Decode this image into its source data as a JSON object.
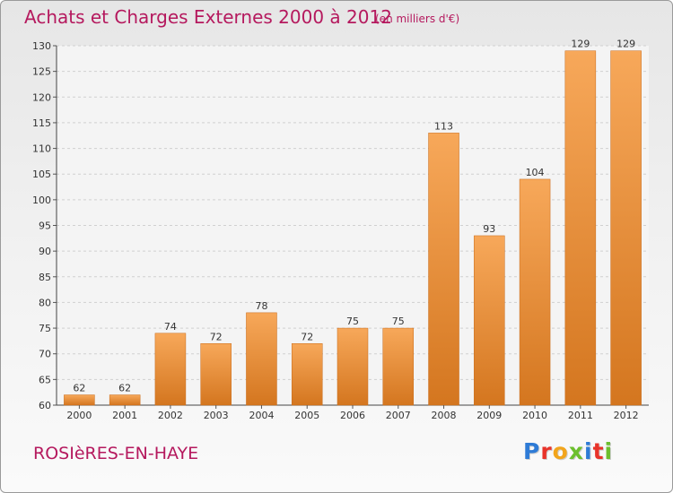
{
  "header": {
    "title": "Achats et Charges Externes 2000 à 2012",
    "subtitle": "(en milliers d'€)"
  },
  "footer": {
    "town": "ROSIèRES-EN-HAYE",
    "logo_letters": [
      "P",
      "r",
      "o",
      "x",
      "i",
      "t",
      "i"
    ]
  },
  "colors": {
    "title": "#b5195e",
    "bar_light": "#f7a85a",
    "bar_dark": "#d4761f",
    "logo": [
      "#2e7bd6",
      "#e8332a",
      "#f2a51c",
      "#6cbf2e",
      "#2e7bd6",
      "#e8332a",
      "#6cbf2e"
    ]
  },
  "chart_data": {
    "type": "bar",
    "title": "Achats et Charges Externes 2000 à 2012",
    "categories": [
      "2000",
      "2001",
      "2002",
      "2003",
      "2004",
      "2005",
      "2006",
      "2007",
      "2008",
      "2009",
      "2010",
      "2011",
      "2012"
    ],
    "values": [
      62,
      62,
      74,
      72,
      78,
      72,
      75,
      75,
      113,
      93,
      104,
      129,
      129
    ],
    "value_labels": [
      "62",
      "62",
      "74",
      "72",
      "78",
      "72",
      "75",
      "75",
      "113",
      "93",
      "104",
      "129",
      "129"
    ],
    "xlabel": "",
    "ylabel": "",
    "ylim": [
      60,
      130
    ],
    "yticks": [
      60,
      65,
      70,
      75,
      80,
      85,
      90,
      95,
      100,
      105,
      110,
      115,
      120,
      125,
      130
    ],
    "grid": true
  }
}
